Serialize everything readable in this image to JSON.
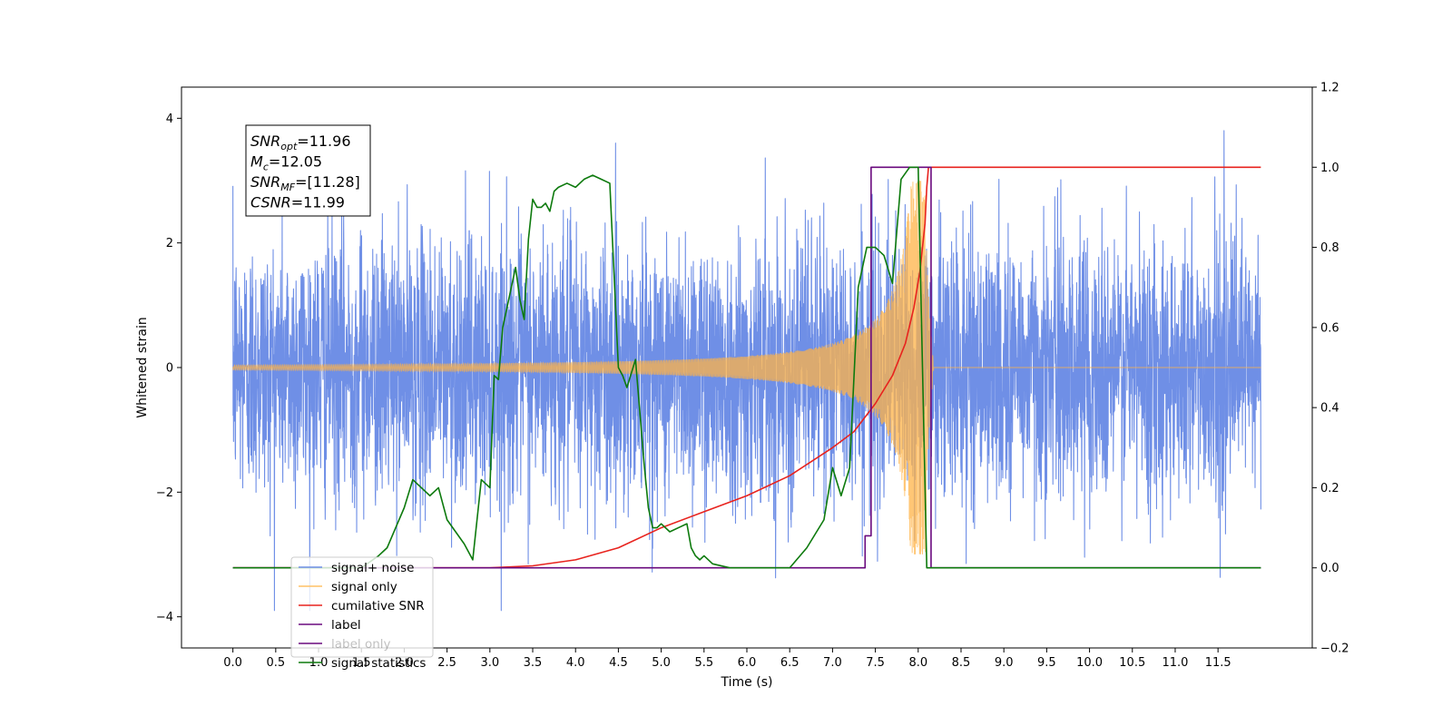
{
  "chart_data": {
    "type": "line",
    "title": "",
    "xlabel": "Time (s)",
    "ylabel": "Whitened strain",
    "ylabel_right": "",
    "xlim": [
      -0.6,
      12.6
    ],
    "ylim": [
      -4.5,
      4.5
    ],
    "ylim_right": [
      -0.2,
      1.2
    ],
    "grid": false,
    "legend_position": "lower-left",
    "x_ticks": [
      "0.0",
      "0.5",
      "1.0",
      "1.5",
      "2.0",
      "2.5",
      "3.0",
      "3.5",
      "4.0",
      "4.5",
      "5.0",
      "5.5",
      "6.0",
      "6.5",
      "7.0",
      "7.5",
      "8.0",
      "8.5",
      "9.0",
      "9.5",
      "10.0",
      "10.5",
      "11.0",
      "11.5"
    ],
    "x_tick_values": [
      0,
      0.5,
      1,
      1.5,
      2,
      2.5,
      3,
      3.5,
      4,
      4.5,
      5,
      5.5,
      6,
      6.5,
      7,
      7.5,
      8,
      8.5,
      9,
      9.5,
      10,
      10.5,
      11,
      11.5
    ],
    "y_ticks": [
      "−4",
      "−2",
      "0",
      "2",
      "4"
    ],
    "y_tick_values": [
      -4,
      -2,
      0,
      2,
      4
    ],
    "y_ticks_right": [
      "−0.2",
      "0.0",
      "0.2",
      "0.4",
      "0.6",
      "0.8",
      "1.0",
      "1.2"
    ],
    "y_tick_values_right": [
      -0.2,
      0,
      0.2,
      0.4,
      0.6,
      0.8,
      1.0,
      1.2
    ],
    "info_box": [
      {
        "symbol": "SNR",
        "subscript": "opt",
        "value": "=11.96"
      },
      {
        "symbol": "M",
        "subscript": "c",
        "value": "=12.05"
      },
      {
        "symbol": "SNR",
        "subscript": "MF",
        "value": "=[11.28]"
      },
      {
        "symbol": "CSNR",
        "subscript": "",
        "value": "=11.99"
      }
    ],
    "series": [
      {
        "name": "signal+ noise",
        "color": "#6f8fe6",
        "axis": "left",
        "kind": "noise",
        "x_range": [
          0,
          12
        ],
        "amplitude_sigma": 1.0,
        "peak_range": [
          -3.9,
          4.1
        ]
      },
      {
        "name": "signal only",
        "color": "#ffb347",
        "axis": "left",
        "kind": "chirp",
        "x_range": [
          0,
          12
        ],
        "merger_time": 8.1,
        "peak_amplitude": 3.0
      },
      {
        "name": "cumilative SNR",
        "color": "#e8231e",
        "axis": "right",
        "x": [
          0.0,
          2.0,
          3.0,
          3.5,
          4.0,
          4.5,
          5.0,
          5.5,
          6.0,
          6.5,
          7.0,
          7.25,
          7.5,
          7.7,
          7.85,
          7.95,
          8.02,
          8.08,
          8.1,
          8.12,
          12.0
        ],
        "y": [
          0.0,
          0.0,
          0.0,
          0.005,
          0.02,
          0.05,
          0.1,
          0.14,
          0.18,
          0.23,
          0.3,
          0.34,
          0.41,
          0.48,
          0.56,
          0.65,
          0.74,
          0.86,
          0.95,
          1.0,
          1.0
        ]
      },
      {
        "name": "label",
        "color": "#6a0a7e",
        "axis": "right",
        "x": [
          0.0,
          7.38,
          7.38,
          7.45,
          7.45,
          8.15,
          8.15,
          12.0
        ],
        "y": [
          0.0,
          0.0,
          0.08,
          0.08,
          1.0,
          1.0,
          0.0,
          0.0
        ]
      },
      {
        "name": "label only",
        "color": "#6a0a7e",
        "axis": "right",
        "legend_only": true,
        "faded": true
      },
      {
        "name": "signal statistics",
        "color": "#0d7a0d",
        "axis": "right",
        "x": [
          0.0,
          1.2,
          1.5,
          1.7,
          1.8,
          1.9,
          2.0,
          2.1,
          2.2,
          2.3,
          2.4,
          2.5,
          2.6,
          2.7,
          2.8,
          2.9,
          3.0,
          3.05,
          3.1,
          3.15,
          3.2,
          3.25,
          3.3,
          3.35,
          3.4,
          3.45,
          3.5,
          3.55,
          3.6,
          3.65,
          3.7,
          3.75,
          3.8,
          3.9,
          4.0,
          4.1,
          4.2,
          4.3,
          4.4,
          4.5,
          4.55,
          4.6,
          4.7,
          4.8,
          4.85,
          4.9,
          4.95,
          5.0,
          5.1,
          5.2,
          5.3,
          5.35,
          5.4,
          5.45,
          5.5,
          5.6,
          5.8,
          6.0,
          6.5,
          6.7,
          6.9,
          7.0,
          7.1,
          7.2,
          7.3,
          7.4,
          7.5,
          7.6,
          7.7,
          7.8,
          7.9,
          8.0,
          8.05,
          8.1,
          8.15,
          8.2,
          8.5,
          12.0
        ],
        "y": [
          0.0,
          0.0,
          0.0,
          0.03,
          0.05,
          0.1,
          0.15,
          0.22,
          0.2,
          0.18,
          0.2,
          0.12,
          0.09,
          0.06,
          0.02,
          0.22,
          0.2,
          0.48,
          0.47,
          0.6,
          0.65,
          0.7,
          0.75,
          0.67,
          0.62,
          0.82,
          0.92,
          0.9,
          0.9,
          0.91,
          0.89,
          0.94,
          0.95,
          0.96,
          0.95,
          0.97,
          0.98,
          0.97,
          0.96,
          0.5,
          0.48,
          0.45,
          0.52,
          0.26,
          0.15,
          0.1,
          0.1,
          0.11,
          0.09,
          0.1,
          0.11,
          0.05,
          0.03,
          0.02,
          0.03,
          0.01,
          0.0,
          0.0,
          0.0,
          0.05,
          0.12,
          0.25,
          0.18,
          0.25,
          0.7,
          0.8,
          0.8,
          0.78,
          0.71,
          0.97,
          1.0,
          1.0,
          0.5,
          0.0,
          0.0,
          0.0,
          0.0,
          0.0
        ]
      }
    ]
  }
}
